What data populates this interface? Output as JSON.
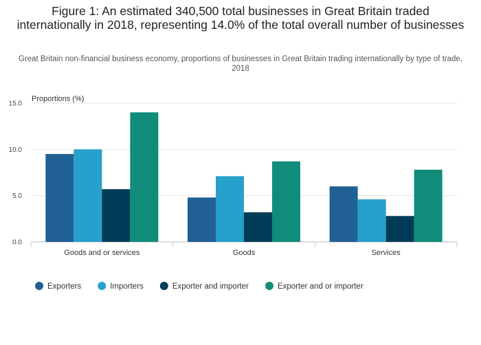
{
  "header": {
    "title": "Figure 1: An estimated 340,500 total businesses in Great Britain traded internationally in 2018, representing 14.0% of the total overall number of businesses",
    "subtitle": "Great Britain non-financial business economy, proportions of businesses in Great Britain trading internationally by type of trade, 2018"
  },
  "chart_data": {
    "type": "bar",
    "title": "Figure 1: An estimated 340,500 total businesses in Great Britain traded internationally in 2018, representing 14.0% of the total overall number of businesses",
    "subtitle": "Great Britain non-financial business economy, proportions of businesses in Great Britain trading internationally by type of trade, 2018",
    "xlabel": "",
    "ylabel": "Proportions (%)",
    "ylim": [
      0,
      15
    ],
    "yticks": [
      "0.0",
      "5.0",
      "10.0",
      "15.0"
    ],
    "grid": true,
    "legend_position": "bottom",
    "categories": [
      "Goods and or services",
      "Goods",
      "Services"
    ],
    "series": [
      {
        "name": "Exporters",
        "color": "#206095",
        "values": [
          9.5,
          4.8,
          6.0
        ]
      },
      {
        "name": "Importers",
        "color": "#27a0cc",
        "values": [
          10.0,
          7.1,
          4.6
        ]
      },
      {
        "name": "Exporter and importer",
        "color": "#003c57",
        "values": [
          5.7,
          3.2,
          2.8
        ]
      },
      {
        "name": "Exporter and or importer",
        "color": "#118c7b",
        "values": [
          14.0,
          8.7,
          7.8
        ]
      }
    ]
  }
}
